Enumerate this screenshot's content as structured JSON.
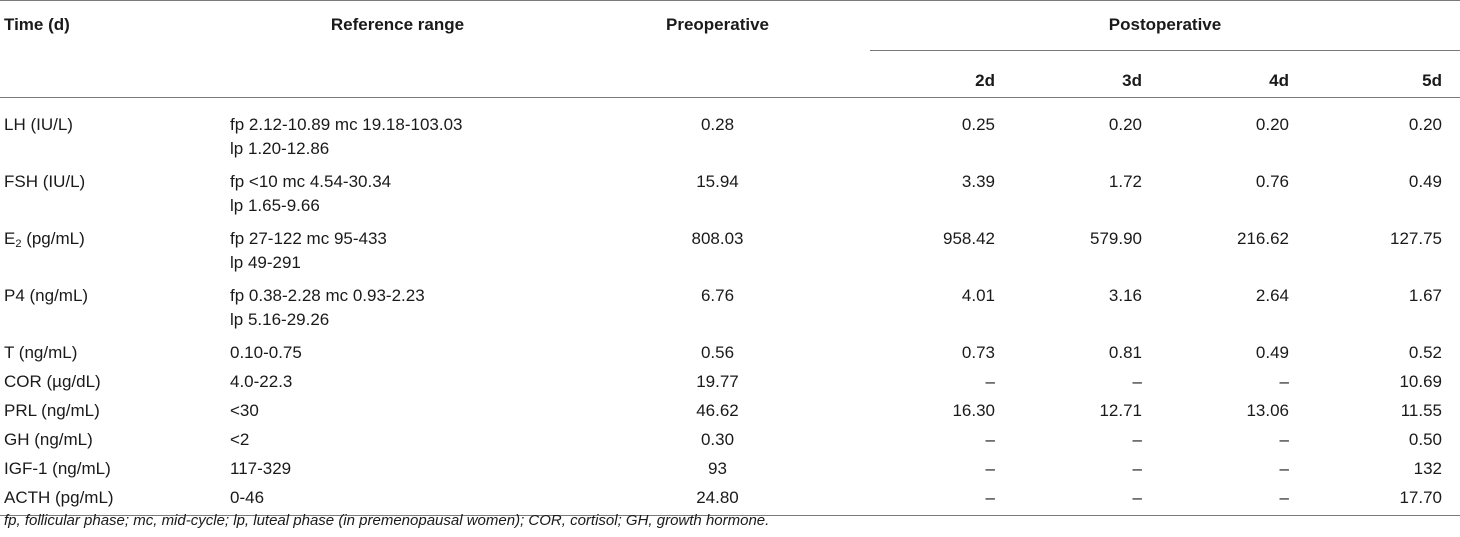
{
  "header": {
    "time": "Time (d)",
    "reference_range": "Reference range",
    "preoperative": "Preoperative",
    "postoperative": "Postoperative",
    "days": [
      "2d",
      "3d",
      "4d",
      "5d"
    ]
  },
  "rows": [
    {
      "name": "LH (IU/L)",
      "ref_line1": "fp 2.12-10.89 mc 19.18-103.03",
      "ref_line2": "lp 1.20-12.86",
      "pre": "0.28",
      "d2": "0.25",
      "d3": "0.20",
      "d4": "0.20",
      "d5": "0.20"
    },
    {
      "name": "FSH (IU/L)",
      "ref_line1": "fp <10 mc 4.54-30.34",
      "ref_line2": "lp 1.65-9.66",
      "pre": "15.94",
      "d2": "3.39",
      "d3": "1.72",
      "d4": "0.76",
      "d5": "0.49"
    },
    {
      "name_prefix": "E",
      "name_sub": "2",
      "name_suffix": " (pg/mL)",
      "ref_line1": "fp 27-122 mc 95-433",
      "ref_line2": "lp 49-291",
      "pre": "808.03",
      "d2": "958.42",
      "d3": "579.90",
      "d4": "216.62",
      "d5": "127.75"
    },
    {
      "name": "P4 (ng/mL)",
      "ref_line1": "fp 0.38-2.28 mc 0.93-2.23",
      "ref_line2": "lp 5.16-29.26",
      "pre": "6.76",
      "d2": "4.01",
      "d3": "3.16",
      "d4": "2.64",
      "d5": "1.67"
    },
    {
      "name": "T (ng/mL)",
      "ref_line1": "0.10-0.75",
      "pre": "0.56",
      "d2": "0.73",
      "d3": "0.81",
      "d4": "0.49",
      "d5": "0.52"
    },
    {
      "name": "COR (µg/dL)",
      "ref_line1": "4.0-22.3",
      "pre": "19.77",
      "d2": "–",
      "d3": "–",
      "d4": "–",
      "d5": "10.69"
    },
    {
      "name": "PRL (ng/mL)",
      "ref_line1": "<30",
      "pre": "46.62",
      "d2": "16.30",
      "d3": "12.71",
      "d4": "13.06",
      "d5": "11.55"
    },
    {
      "name": "GH (ng/mL)",
      "ref_line1": "<2",
      "pre": "0.30",
      "d2": "–",
      "d3": "–",
      "d4": "–",
      "d5": "0.50"
    },
    {
      "name": "IGF-1 (ng/mL)",
      "ref_line1": "117-329",
      "pre": "93",
      "d2": "–",
      "d3": "–",
      "d4": "–",
      "d5": "132"
    },
    {
      "name": "ACTH (pg/mL)",
      "ref_line1": "0-46",
      "pre": "24.80",
      "d2": "–",
      "d3": "–",
      "d4": "–",
      "d5": "17.70"
    }
  ],
  "footnote": "fp, follicular phase; mc, mid-cycle; lp, luteal phase (in premenopausal women); COR, cortisol; GH, growth hormone."
}
